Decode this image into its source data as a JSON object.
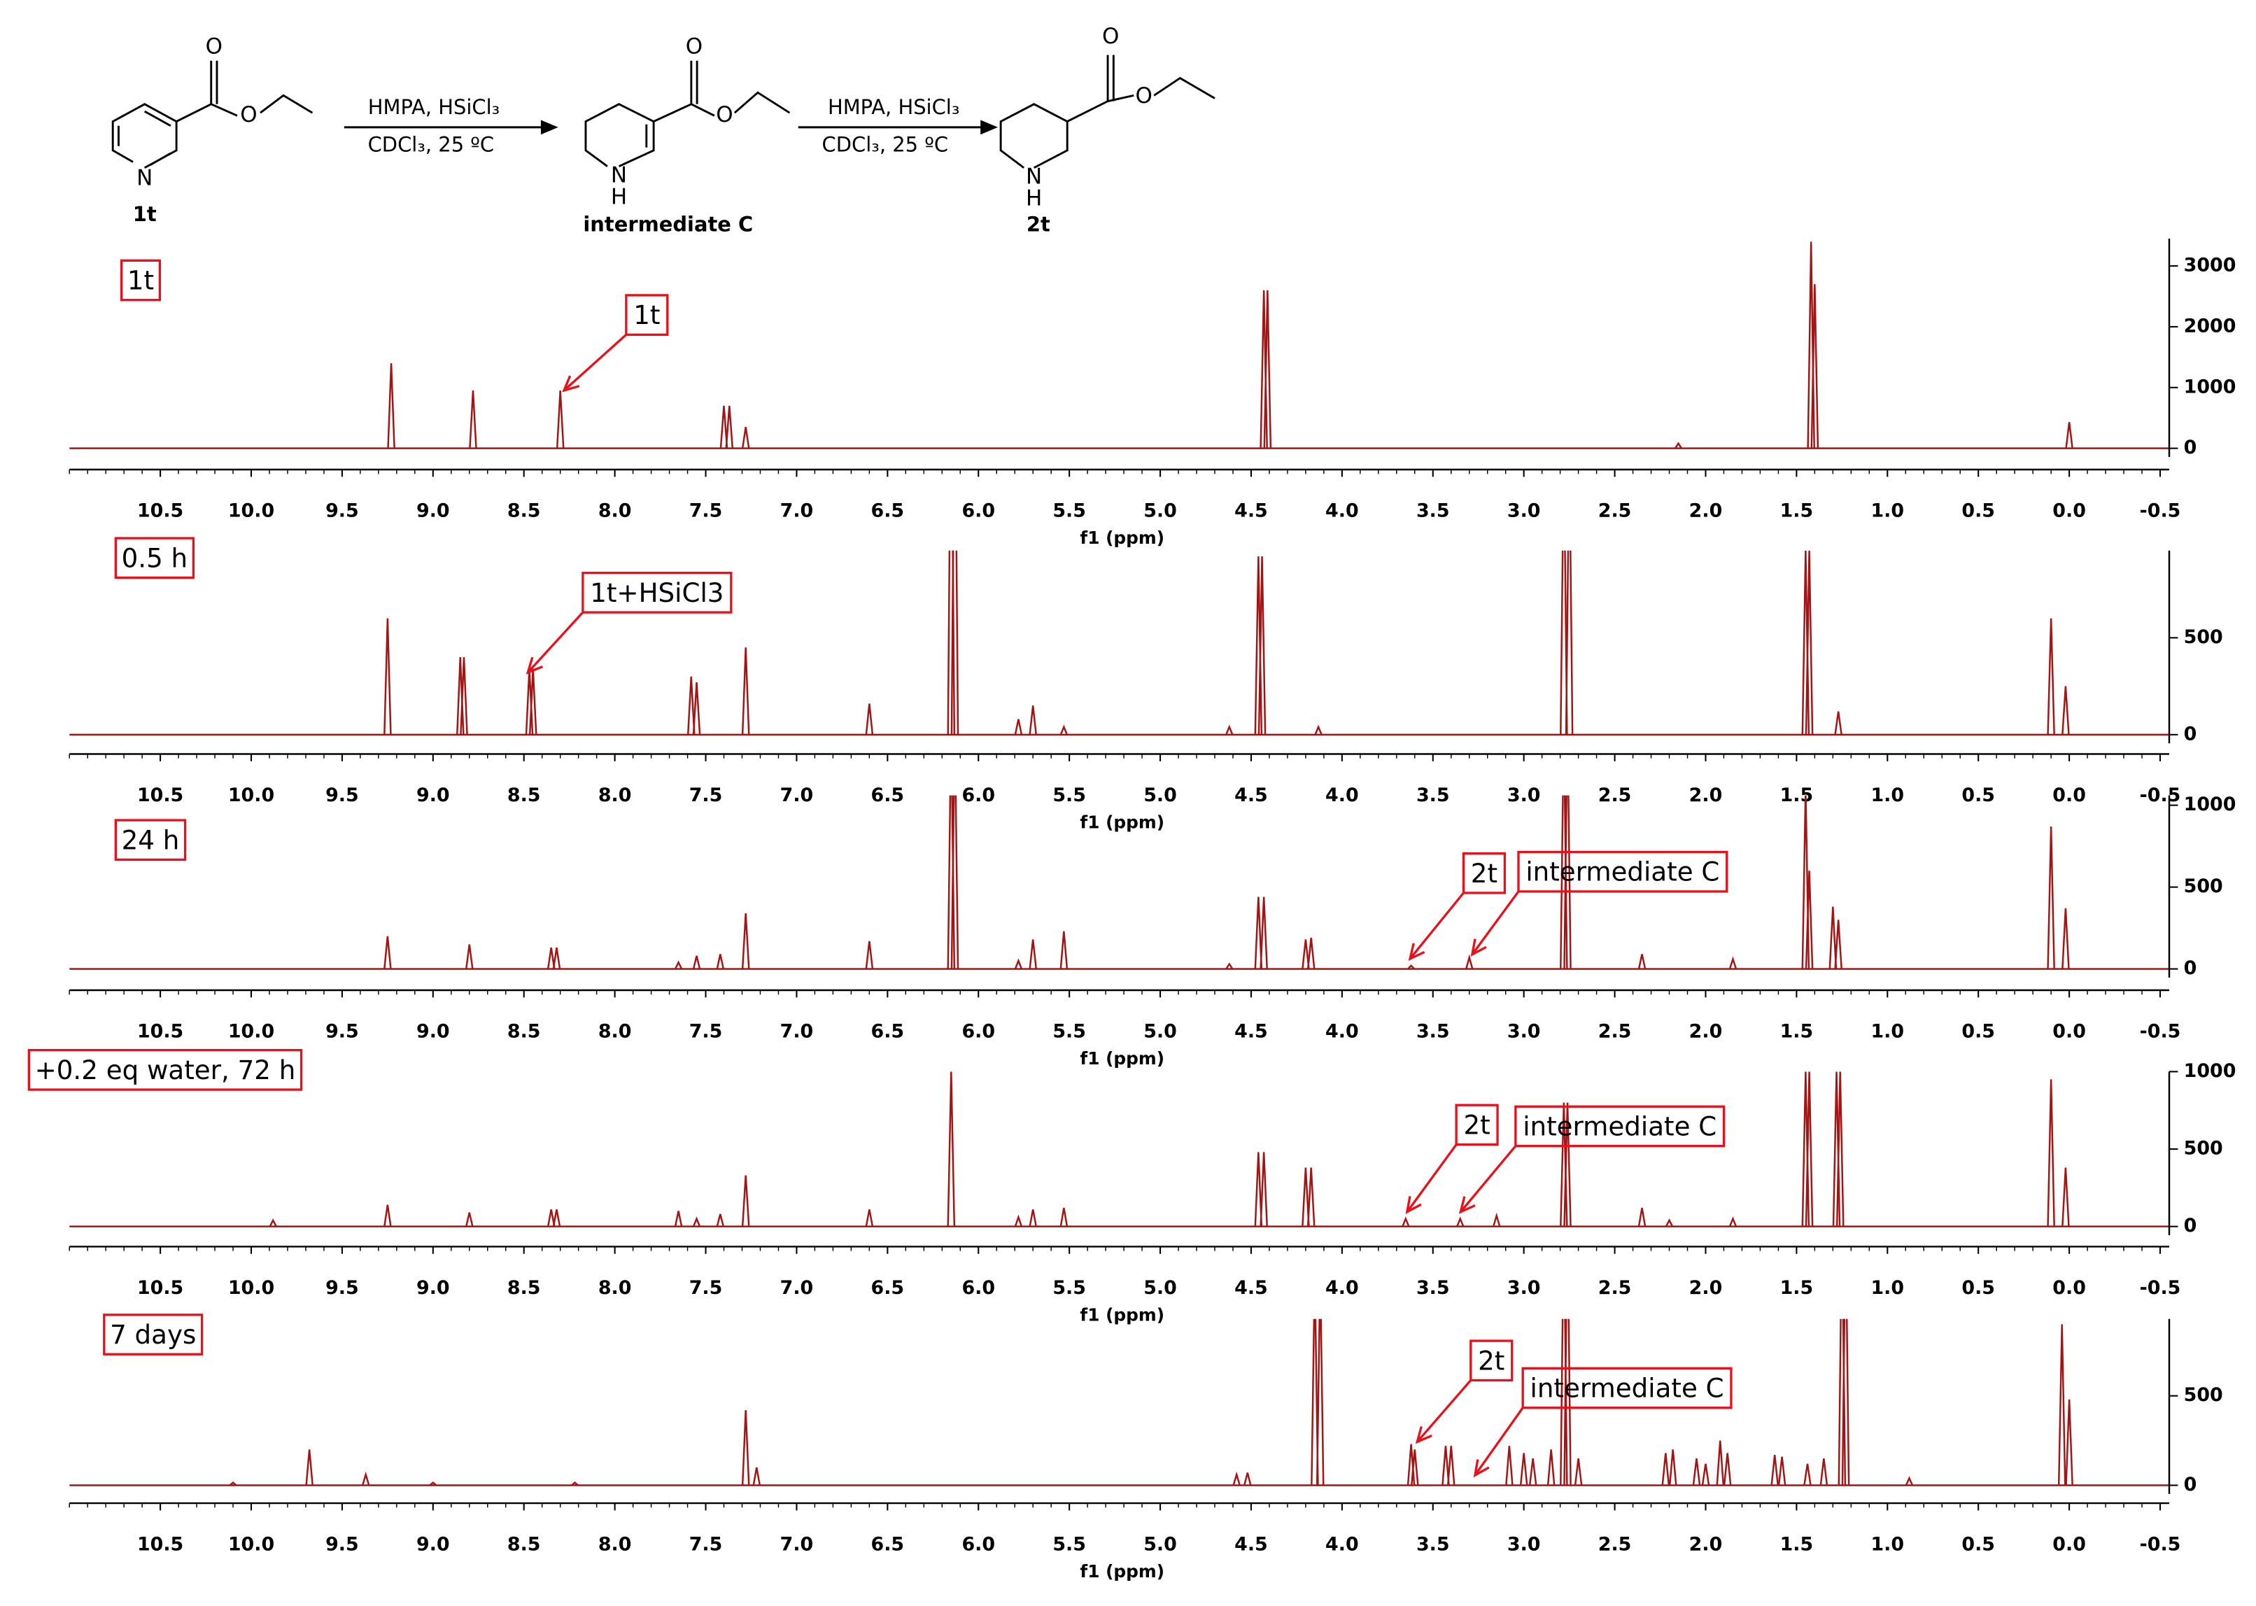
{
  "scheme": {
    "compounds": [
      {
        "name": "1t",
        "atoms": [
          "O",
          "O",
          "N"
        ]
      },
      {
        "name": "intermediate C",
        "atoms": [
          "O",
          "O",
          "N",
          "H"
        ]
      },
      {
        "name": "2t",
        "atoms": [
          "O",
          "O",
          "N",
          "H"
        ]
      }
    ],
    "arrows": [
      {
        "reagents": "HMPA, HSiCl₃",
        "conditions": "CDCl₃, 25 ºC"
      },
      {
        "reagents": "HMPA, HSiCl₃",
        "conditions": "CDCl₃, 25 ºC"
      }
    ]
  },
  "chart_data": [
    {
      "type": "spectrum",
      "title": "1t",
      "xlabel": "f1 (ppm)",
      "color": "#a31515",
      "annotations": [
        "1t"
      ],
      "xlim": [
        11,
        -0.55
      ],
      "xticks": [
        10.5,
        {
          "value": 10,
          "label": "10.0"
        },
        9.5,
        {
          "value": 9,
          "label": "9.0"
        },
        8.5,
        {
          "value": 8,
          "label": "8.0"
        },
        7.5,
        {
          "value": 7,
          "label": "7.0"
        },
        6.5,
        {
          "value": 6,
          "label": "6.0"
        },
        5.5,
        {
          "value": 5,
          "label": "5.0"
        },
        4.5,
        {
          "value": 4,
          "label": "4.0"
        },
        3.5,
        {
          "value": 3,
          "label": "3.0"
        },
        2.5,
        {
          "value": 2,
          "label": "2.0"
        },
        1.5,
        {
          "value": 1,
          "label": "1.0"
        },
        0.5,
        {
          "value": 0,
          "label": "0.0"
        },
        -0.5
      ],
      "ylim": [
        -350,
        3450
      ],
      "yticks": [
        0,
        1000,
        2000,
        3000
      ],
      "x": [
        9.23,
        8.78,
        8.3,
        7.4,
        7.37,
        7.28,
        4.43,
        4.41,
        2.15,
        1.42,
        1.4,
        0.0
      ],
      "values": [
        1400,
        950,
        950,
        700,
        700,
        350,
        2600,
        2600,
        80,
        3400,
        2700,
        430
      ]
    },
    {
      "type": "spectrum",
      "title": "0.5 h",
      "xlabel": "f1 (ppm)",
      "color": "#a31515",
      "annotations": [
        "1t+HSiCl3"
      ],
      "xlim": [
        11,
        -0.55
      ],
      "xticks": [
        10.5,
        {
          "value": 10,
          "label": "10.0"
        },
        9.5,
        {
          "value": 9,
          "label": "9.0"
        },
        8.5,
        {
          "value": 8,
          "label": "8.0"
        },
        7.5,
        {
          "value": 7,
          "label": "7.0"
        },
        6.5,
        {
          "value": 6,
          "label": "6.0"
        },
        5.5,
        {
          "value": 5,
          "label": "5.0"
        },
        4.5,
        {
          "value": 4,
          "label": "4.0"
        },
        3.5,
        {
          "value": 3,
          "label": "3.0"
        },
        2.5,
        {
          "value": 2,
          "label": "2.0"
        },
        1.5,
        {
          "value": 1,
          "label": "1.0"
        },
        0.5,
        {
          "value": 0,
          "label": "0.0"
        },
        -0.5
      ],
      "ylim": [
        -100,
        950
      ],
      "yticks": [
        0,
        500
      ],
      "x": [
        9.25,
        8.85,
        8.83,
        8.47,
        8.45,
        7.58,
        7.55,
        7.28,
        6.6,
        6.15,
        6.13,
        5.78,
        5.7,
        5.53,
        4.62,
        4.46,
        4.44,
        4.13,
        2.78,
        2.75,
        1.45,
        1.43,
        1.27,
        0.1,
        0.02
      ],
      "values": [
        600,
        400,
        400,
        340,
        340,
        300,
        270,
        450,
        160,
        2000,
        2000,
        80,
        150,
        40,
        40,
        920,
        920,
        40,
        1500,
        1500,
        950,
        950,
        120,
        600,
        250
      ]
    },
    {
      "type": "spectrum",
      "title": "24 h",
      "xlabel": "f1 (ppm)",
      "color": "#a31515",
      "annotations": [
        "2t",
        "intermediate C"
      ],
      "xlim": [
        11,
        -0.55
      ],
      "xticks": [
        10.5,
        {
          "value": 10,
          "label": "10.0"
        },
        9.5,
        {
          "value": 9,
          "label": "9.0"
        },
        8.5,
        {
          "value": 8,
          "label": "8.0"
        },
        7.5,
        {
          "value": 7,
          "label": "7.0"
        },
        6.5,
        {
          "value": 6,
          "label": "6.0"
        },
        5.5,
        {
          "value": 5,
          "label": "5.0"
        },
        4.5,
        {
          "value": 4,
          "label": "4.0"
        },
        3.5,
        {
          "value": 3,
          "label": "3.0"
        },
        2.5,
        {
          "value": 2,
          "label": "2.0"
        },
        1.5,
        {
          "value": 1,
          "label": "1.0"
        },
        0.5,
        {
          "value": 0,
          "label": "0.0"
        },
        -0.5
      ],
      "ylim": [
        -130,
        1060
      ],
      "yticks": [
        0,
        500,
        1000
      ],
      "x": [
        9.25,
        8.8,
        8.35,
        8.32,
        7.65,
        7.55,
        7.42,
        7.28,
        6.6,
        6.15,
        6.13,
        5.78,
        5.7,
        5.53,
        4.62,
        4.46,
        4.43,
        4.2,
        4.17,
        3.62,
        3.3,
        2.78,
        2.76,
        2.35,
        1.85,
        1.45,
        1.43,
        1.3,
        1.27,
        0.1,
        0.02
      ],
      "values": [
        200,
        150,
        130,
        130,
        40,
        80,
        90,
        340,
        170,
        1500,
        1500,
        50,
        180,
        230,
        30,
        440,
        440,
        180,
        190,
        20,
        70,
        1500,
        1500,
        90,
        60,
        1100,
        600,
        380,
        300,
        870,
        370
      ]
    },
    {
      "type": "spectrum",
      "title": "+0.2 eq water, 72 h",
      "xlabel": "f1 (ppm)",
      "color": "#a31515",
      "annotations": [
        "2t",
        "intermediate C"
      ],
      "xlim": [
        11,
        -0.55
      ],
      "xticks": [
        10.5,
        {
          "value": 10,
          "label": "10.0"
        },
        9.5,
        {
          "value": 9,
          "label": "9.0"
        },
        8.5,
        {
          "value": 8,
          "label": "8.0"
        },
        7.5,
        {
          "value": 7,
          "label": "7.0"
        },
        6.5,
        {
          "value": 6,
          "label": "6.0"
        },
        5.5,
        {
          "value": 5,
          "label": "5.0"
        },
        4.5,
        {
          "value": 4,
          "label": "4.0"
        },
        3.5,
        {
          "value": 3,
          "label": "3.0"
        },
        2.5,
        {
          "value": 2,
          "label": "2.0"
        },
        1.5,
        {
          "value": 1,
          "label": "1.0"
        },
        0.5,
        {
          "value": 0,
          "label": "0.0"
        },
        -0.5
      ],
      "ylim": [
        -130,
        1000
      ],
      "yticks": [
        0,
        500,
        1000
      ],
      "x": [
        9.88,
        9.25,
        8.8,
        8.35,
        8.32,
        7.65,
        7.55,
        7.42,
        7.28,
        6.6,
        6.15,
        5.78,
        5.7,
        5.53,
        4.46,
        4.43,
        4.2,
        4.17,
        3.65,
        3.35,
        3.15,
        2.78,
        2.76,
        2.35,
        2.2,
        1.85,
        1.45,
        1.43,
        1.28,
        1.26,
        0.1,
        0.02
      ],
      "values": [
        40,
        140,
        90,
        110,
        110,
        100,
        50,
        80,
        330,
        110,
        1000,
        60,
        110,
        120,
        480,
        480,
        380,
        380,
        50,
        50,
        70,
        800,
        800,
        120,
        40,
        50,
        1000,
        1000,
        1000,
        1000,
        950,
        380
      ]
    },
    {
      "type": "spectrum",
      "title": "7 days",
      "xlabel": "f1 (ppm)",
      "color": "#a31515",
      "annotations": [
        "2t",
        "intermediate C"
      ],
      "xlim": [
        11,
        -0.55
      ],
      "xticks": [
        10.5,
        {
          "value": 10,
          "label": "10.0"
        },
        9.5,
        {
          "value": 9,
          "label": "9.0"
        },
        8.5,
        {
          "value": 8,
          "label": "8.0"
        },
        7.5,
        {
          "value": 7,
          "label": "7.0"
        },
        6.5,
        {
          "value": 6,
          "label": "6.0"
        },
        5.5,
        {
          "value": 5,
          "label": "5.0"
        },
        4.5,
        {
          "value": 4,
          "label": "4.0"
        },
        3.5,
        {
          "value": 3,
          "label": "3.0"
        },
        2.5,
        {
          "value": 2,
          "label": "2.0"
        },
        1.5,
        {
          "value": 1,
          "label": "1.0"
        },
        0.5,
        {
          "value": 0,
          "label": "0.0"
        },
        -0.5
      ],
      "ylim": [
        -100,
        930
      ],
      "yticks": [
        0,
        500
      ],
      "x": [
        10.1,
        9.68,
        9.37,
        9.0,
        8.22,
        7.28,
        7.22,
        4.58,
        4.52,
        4.15,
        4.12,
        3.62,
        3.6,
        3.43,
        3.4,
        3.08,
        3.0,
        2.95,
        2.85,
        2.78,
        2.76,
        2.7,
        2.22,
        2.18,
        2.05,
        2.0,
        1.92,
        1.88,
        1.62,
        1.58,
        1.44,
        1.35,
        1.25,
        1.23,
        0.88,
        0.04,
        0.0
      ],
      "values": [
        15,
        200,
        60,
        15,
        15,
        420,
        100,
        60,
        70,
        1200,
        1200,
        230,
        200,
        220,
        220,
        220,
        180,
        150,
        200,
        1500,
        1500,
        150,
        180,
        200,
        150,
        120,
        250,
        180,
        170,
        160,
        120,
        150,
        1500,
        1500,
        40,
        900,
        480
      ]
    }
  ]
}
